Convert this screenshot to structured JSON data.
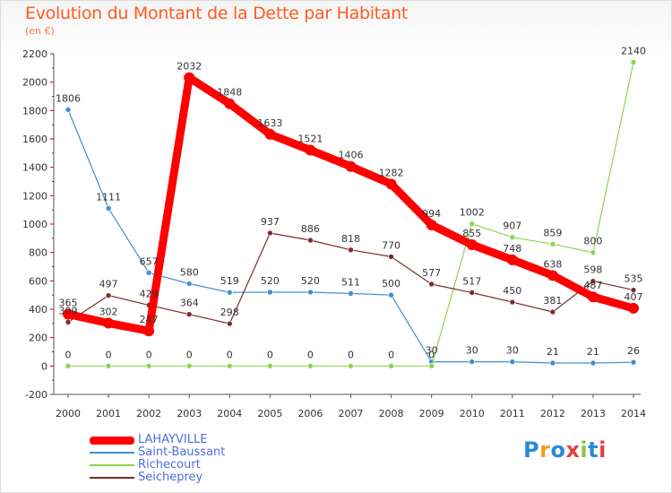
{
  "header": {
    "title": "Evolution du Montant de la Dette par Habitant",
    "subtitle": "(en €)"
  },
  "logo": {
    "text": "Proxiti",
    "colors": [
      "#2a8ad4",
      "#f0a01e",
      "#2a8ad4",
      "#e83e3e",
      "#8cc63f",
      "#2a8ad4",
      "#e83e3e"
    ]
  },
  "chart_data": {
    "type": "line",
    "title": "Evolution du Montant de la Dette par Habitant",
    "subtitle": "(en €)",
    "xlabel": "",
    "ylabel": "",
    "x": [
      "2000",
      "2001",
      "2002",
      "2003",
      "2004",
      "2005",
      "2006",
      "2007",
      "2008",
      "2009",
      "2010",
      "2011",
      "2012",
      "2013",
      "2014"
    ],
    "ylim": [
      -200,
      2200
    ],
    "yticks": [
      -200,
      0,
      200,
      400,
      600,
      800,
      1000,
      1200,
      1400,
      1600,
      1800,
      2000,
      2200
    ],
    "grid": false,
    "legend": "bottom-left",
    "series": [
      {
        "name": "LAHAYVILLE",
        "color": "#ff0000",
        "values": [
          365,
          302,
          247,
          2032,
          1848,
          1633,
          1521,
          1406,
          1282,
          994,
          855,
          748,
          638,
          487,
          407
        ],
        "labels": [
          "365",
          "302",
          "247",
          "2032",
          "1848",
          "1633",
          "1521",
          "1406",
          "1282",
          "994",
          "855",
          "748",
          "638",
          "487",
          "407"
        ]
      },
      {
        "name": "Saint-Baussant",
        "color": "#3d8fd1",
        "values": [
          1806,
          1111,
          657,
          580,
          519,
          520,
          520,
          511,
          500,
          30,
          30,
          30,
          21,
          21,
          26
        ],
        "labels": [
          "1806",
          "1111",
          "657",
          "580",
          "519",
          "520",
          "520",
          "511",
          "500",
          "30",
          "30",
          "30",
          "21",
          "21",
          "26"
        ]
      },
      {
        "name": "Richecourt",
        "color": "#8ed54f",
        "values": [
          0,
          0,
          0,
          0,
          0,
          0,
          0,
          0,
          0,
          0,
          1002,
          907,
          859,
          800,
          2140
        ],
        "labels": [
          "0",
          "0",
          "0",
          "0",
          "0",
          "0",
          "0",
          "0",
          "0",
          "0",
          "1002",
          "907",
          "859",
          "800",
          "2140"
        ]
      },
      {
        "name": "Seicheprey",
        "color": "#7a2c2c",
        "values": [
          309,
          497,
          429,
          364,
          298,
          937,
          886,
          818,
          770,
          577,
          517,
          450,
          381,
          598,
          535
        ],
        "labels": [
          "309",
          "497",
          "429",
          "364",
          "298",
          "937",
          "886",
          "818",
          "770",
          "577",
          "517",
          "450",
          "381",
          "598",
          "535"
        ]
      }
    ]
  }
}
